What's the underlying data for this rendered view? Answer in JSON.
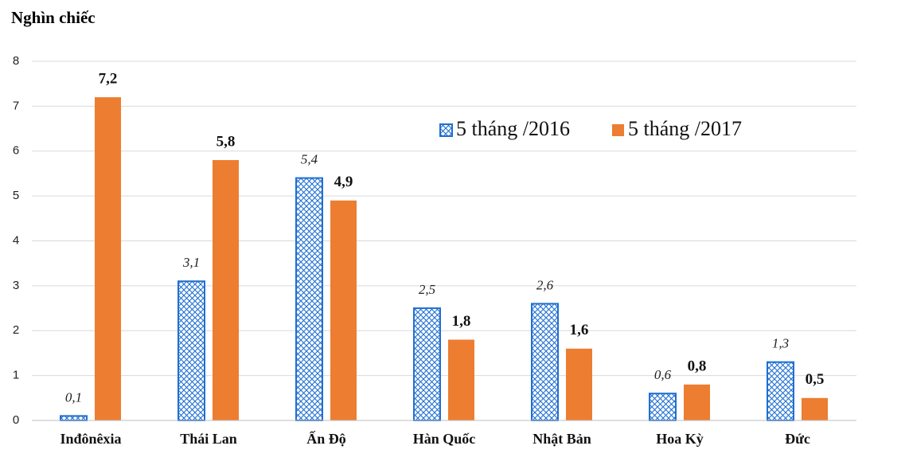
{
  "chart_data": {
    "type": "bar",
    "y_label": "Nghìn chiếc",
    "categories": [
      "Inđônêxia",
      "Thái Lan",
      "Ấn Độ",
      "Hàn Quốc",
      "Nhật Bản",
      "Hoa Kỳ",
      "Đức"
    ],
    "series": [
      {
        "name": "5 tháng /2016",
        "color": "#1f6fd1",
        "values": [
          0.1,
          3.1,
          5.4,
          2.5,
          2.6,
          0.6,
          1.3
        ],
        "value_labels": [
          "0,1",
          "3,1",
          "5,4",
          "2,5",
          "2,6",
          "0,6",
          "1,3"
        ]
      },
      {
        "name": "5 tháng /2017",
        "color": "#ed7d31",
        "values": [
          7.2,
          5.8,
          4.9,
          1.8,
          1.6,
          0.8,
          0.5
        ],
        "value_labels": [
          "7,2",
          "5,8",
          "4,9",
          "1,8",
          "1,6",
          "0,8",
          "0,5"
        ]
      }
    ],
    "ylim": [
      0,
      8
    ],
    "yticks": [
      0,
      1,
      2,
      3,
      4,
      5,
      6,
      7,
      8
    ],
    "grid": true
  }
}
